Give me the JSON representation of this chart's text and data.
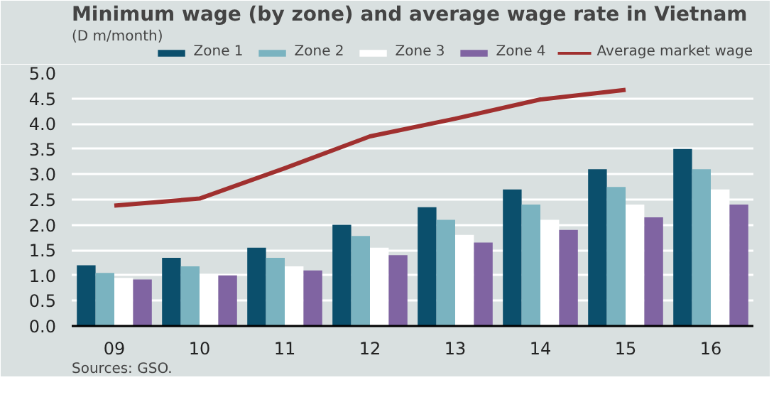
{
  "chart_data": {
    "type": "bar",
    "title": "Minimum  wage (by zone) and average wage rate in Vietnam",
    "subtitle": "(D m/month)",
    "categories": [
      "09",
      "10",
      "11",
      "12",
      "13",
      "14",
      "15",
      "16"
    ],
    "series": [
      {
        "name": "Zone 1",
        "color": "#0b4f6c",
        "values": [
          1.2,
          1.35,
          1.55,
          2.0,
          2.35,
          2.7,
          3.1,
          3.5
        ]
      },
      {
        "name": "Zone 2",
        "color": "#7ab3c0",
        "values": [
          1.05,
          1.18,
          1.35,
          1.78,
          2.1,
          2.4,
          2.75,
          3.1
        ]
      },
      {
        "name": "Zone 3",
        "color": "#ffffff",
        "values": [
          0.95,
          1.03,
          1.18,
          1.55,
          1.8,
          2.1,
          2.4,
          2.7
        ]
      },
      {
        "name": "Zone 4",
        "color": "#8064a2",
        "values": [
          0.92,
          1.0,
          1.1,
          1.4,
          1.65,
          1.9,
          2.15,
          2.4
        ]
      },
      {
        "name": "Average market wage",
        "type": "line",
        "color": "#a0302f",
        "values": [
          2.38,
          2.52,
          3.12,
          3.75,
          4.1,
          4.48,
          4.67,
          null
        ]
      }
    ],
    "ylim": [
      0,
      5.0
    ],
    "yticks": [
      {
        "value": 0,
        "label": "0.0"
      },
      0.5,
      {
        "value": 1,
        "label": "1.0"
      },
      1.5,
      {
        "value": 2,
        "label": "2.0"
      },
      2.5,
      {
        "value": 3,
        "label": "3.0"
      },
      3.5,
      {
        "value": 4,
        "label": "4.0"
      },
      4.5,
      {
        "value": 5,
        "label": "5.0"
      }
    ],
    "grid": "y",
    "legend": "top right",
    "annotations": [
      "Sources: GSO."
    ]
  }
}
